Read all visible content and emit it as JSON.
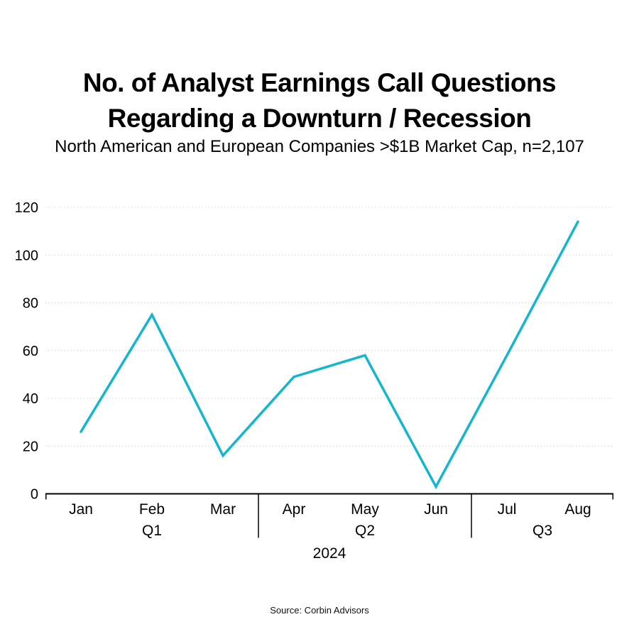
{
  "header": {
    "title_line1": "No. of Analyst Earnings Call Questions",
    "title_line2": "Regarding a Downturn / Recession",
    "subtitle": "North American and European Companies >$1B Market Cap, n=2,107"
  },
  "footer": {
    "source": "Source: Corbin Advisors"
  },
  "chart_data": {
    "type": "line",
    "title": "No. of Analyst Earnings Call Questions Regarding a Downturn / Recession",
    "subtitle": "North American and European Companies >$1B Market Cap, n=2,107",
    "categories": [
      "Jan",
      "Feb",
      "Mar",
      "Apr",
      "May",
      "Jun",
      "Jul",
      "Aug"
    ],
    "values": [
      26,
      75,
      16,
      49,
      58,
      3,
      58,
      114
    ],
    "quarters": [
      {
        "label": "Q1",
        "months": [
          "Jan",
          "Feb",
          "Mar"
        ]
      },
      {
        "label": "Q2",
        "months": [
          "Apr",
          "May",
          "Jun"
        ]
      },
      {
        "label": "Q3",
        "months": [
          "Jul",
          "Aug"
        ]
      }
    ],
    "year_label": "2024",
    "xlabel": "",
    "ylabel": "",
    "y_ticks": [
      0,
      20,
      40,
      60,
      80,
      100,
      120
    ],
    "ylim": [
      0,
      120
    ],
    "grid": true,
    "legend": false,
    "line_color": "#14b5ce",
    "grid_color": "#d4d4d4",
    "axis_color": "#000000",
    "tick_label_color": "#000000"
  }
}
